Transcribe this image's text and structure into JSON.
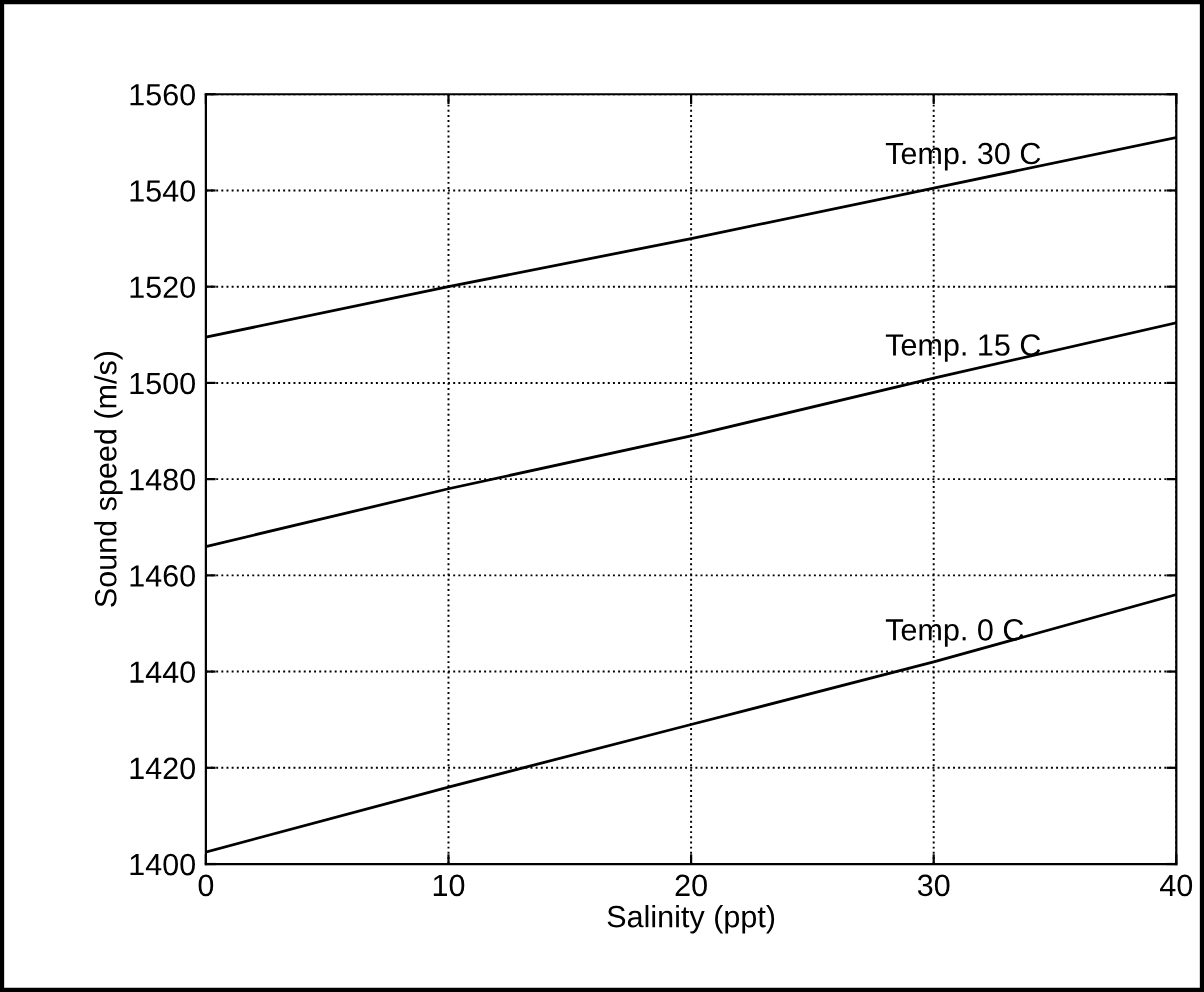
{
  "chart_data": {
    "type": "line",
    "xlabel": "Salinity (ppt)",
    "ylabel": "Sound speed (m/s)",
    "x": [
      0,
      10,
      20,
      30,
      40
    ],
    "series": [
      {
        "name": "Temp. 30 C",
        "color": "#000000",
        "values": [
          1509.5,
          1520,
          1530,
          1540.5,
          1551
        ]
      },
      {
        "name": "Temp. 15 C",
        "color": "#000000",
        "values": [
          1466,
          1478,
          1489,
          1501,
          1512.5
        ]
      },
      {
        "name": "Temp. 0 C",
        "color": "#000000",
        "values": [
          1402.5,
          1416,
          1429,
          1442,
          1456
        ]
      }
    ],
    "xlim": [
      0,
      40
    ],
    "ylim": [
      1400,
      1560
    ],
    "xticks": [
      0,
      10,
      20,
      30,
      40
    ],
    "yticks": [
      1400,
      1420,
      1440,
      1460,
      1480,
      1500,
      1520,
      1540,
      1560
    ],
    "grid": true,
    "line_style": "solid"
  }
}
